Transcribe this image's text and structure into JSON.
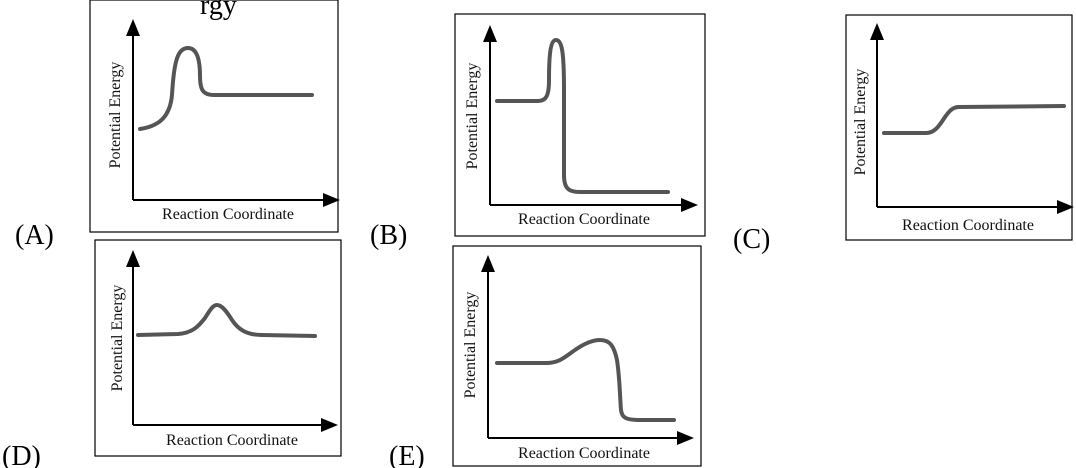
{
  "header": {
    "partial_text": "rgy"
  },
  "axes": {
    "x_label": "Reaction Coordinate",
    "y_label": "Potential Energy"
  },
  "options": [
    {
      "id": "A",
      "label": "(A)"
    },
    {
      "id": "B",
      "label": "(B)"
    },
    {
      "id": "C",
      "label": "(C)"
    },
    {
      "id": "D",
      "label": "(D)"
    },
    {
      "id": "E",
      "label": "(E)"
    }
  ],
  "colors": {
    "curve": "#555555",
    "axis": "#000000",
    "frame": "#000000"
  }
}
